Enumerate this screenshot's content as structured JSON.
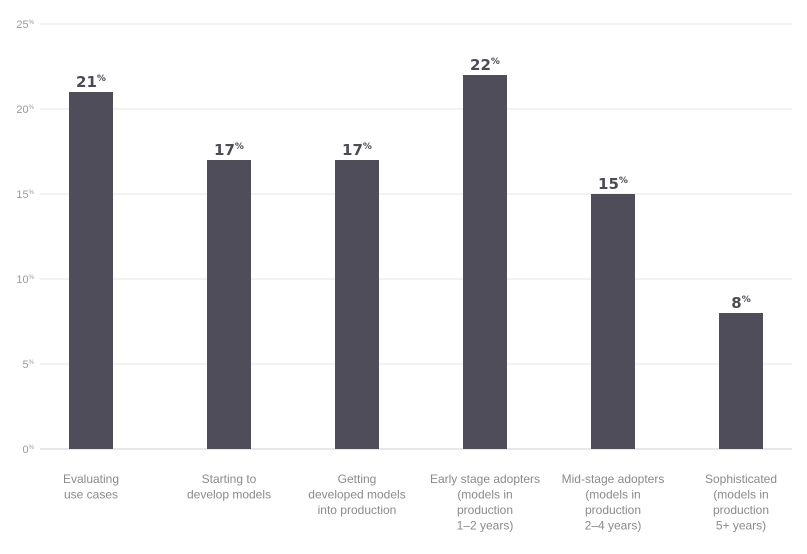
{
  "chart_data": {
    "type": "bar",
    "categories": [
      [
        "Evaluating",
        "use cases"
      ],
      [
        "Starting to",
        "develop models"
      ],
      [
        "Getting",
        "developed models",
        "into production"
      ],
      [
        "Early stage adopters",
        "(models in",
        "production",
        "1–2 years)"
      ],
      [
        "Mid-stage adopters",
        "(models in",
        "production",
        "2–4 years)"
      ],
      [
        "Sophisticated",
        "(models in",
        "production",
        "5+ years)"
      ]
    ],
    "values": [
      21,
      17,
      17,
      22,
      15,
      8
    ],
    "value_labels": [
      "21",
      "17",
      "17",
      "22",
      "15",
      "8"
    ],
    "value_suffix": "%",
    "title": "",
    "xlabel": "",
    "ylabel": "",
    "ylim": [
      0,
      25
    ],
    "yticks": [
      0,
      5,
      10,
      15,
      20,
      25
    ],
    "ytick_labels": [
      "0",
      "5",
      "10",
      "15",
      "20",
      "25"
    ],
    "ytick_suffix": "%",
    "grid": true,
    "legend": "none",
    "colors": {
      "bar": "#4f4d59",
      "grid": "#e6e6e6",
      "tick_text": "#9a9a9a",
      "category_text": "#8a8a8a",
      "value_text": "#4d4a56"
    }
  }
}
